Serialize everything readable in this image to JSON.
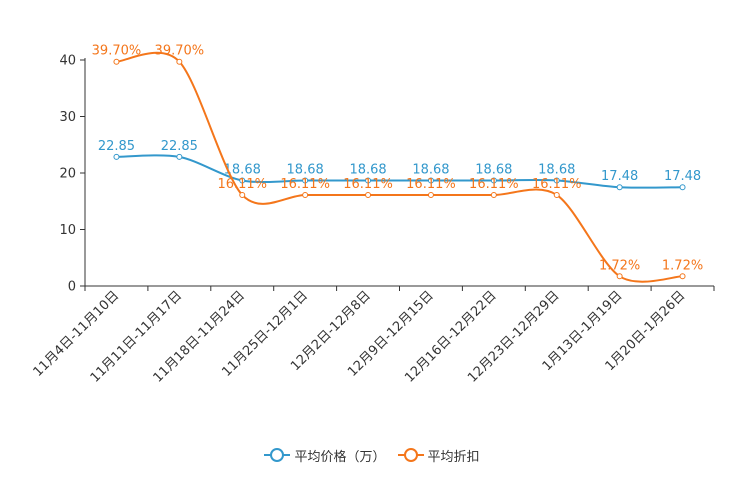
{
  "chart_data": {
    "type": "line",
    "categories": [
      "11月4日-11月10日",
      "11月11日-11月17日",
      "11月18日-11月24日",
      "11月25日-12月1日",
      "12月2日-12月8日",
      "12月9日-12月15日",
      "12月16日-12月22日",
      "12月23日-12月29日",
      "1月13日-1月19日",
      "1月20日-1月26日"
    ],
    "series": [
      {
        "name": "平均价格（万）",
        "color": "#3398cc",
        "values": [
          22.85,
          22.85,
          18.68,
          18.68,
          18.68,
          18.68,
          18.68,
          18.68,
          17.48,
          17.48
        ],
        "labels": [
          "22.85",
          "22.85",
          "18.68",
          "18.68",
          "18.68",
          "18.68",
          "18.68",
          "18.68",
          "17.48",
          "17.48"
        ]
      },
      {
        "name": "平均折扣",
        "color": "#f4761b",
        "values": [
          39.7,
          39.7,
          16.11,
          16.11,
          16.11,
          16.11,
          16.11,
          16.11,
          1.72,
          1.72
        ],
        "labels": [
          "39.70%",
          "39.70%",
          "16.11%",
          "16.11%",
          "16.11%",
          "16.11%",
          "16.11%",
          "16.11%",
          "1.72%",
          "1.72%"
        ]
      }
    ],
    "ylim": [
      0,
      40
    ],
    "yticks": [
      0,
      10,
      20,
      30,
      40
    ],
    "title": "",
    "xlabel": "",
    "ylabel": "",
    "legend_position": "bottom-center"
  }
}
